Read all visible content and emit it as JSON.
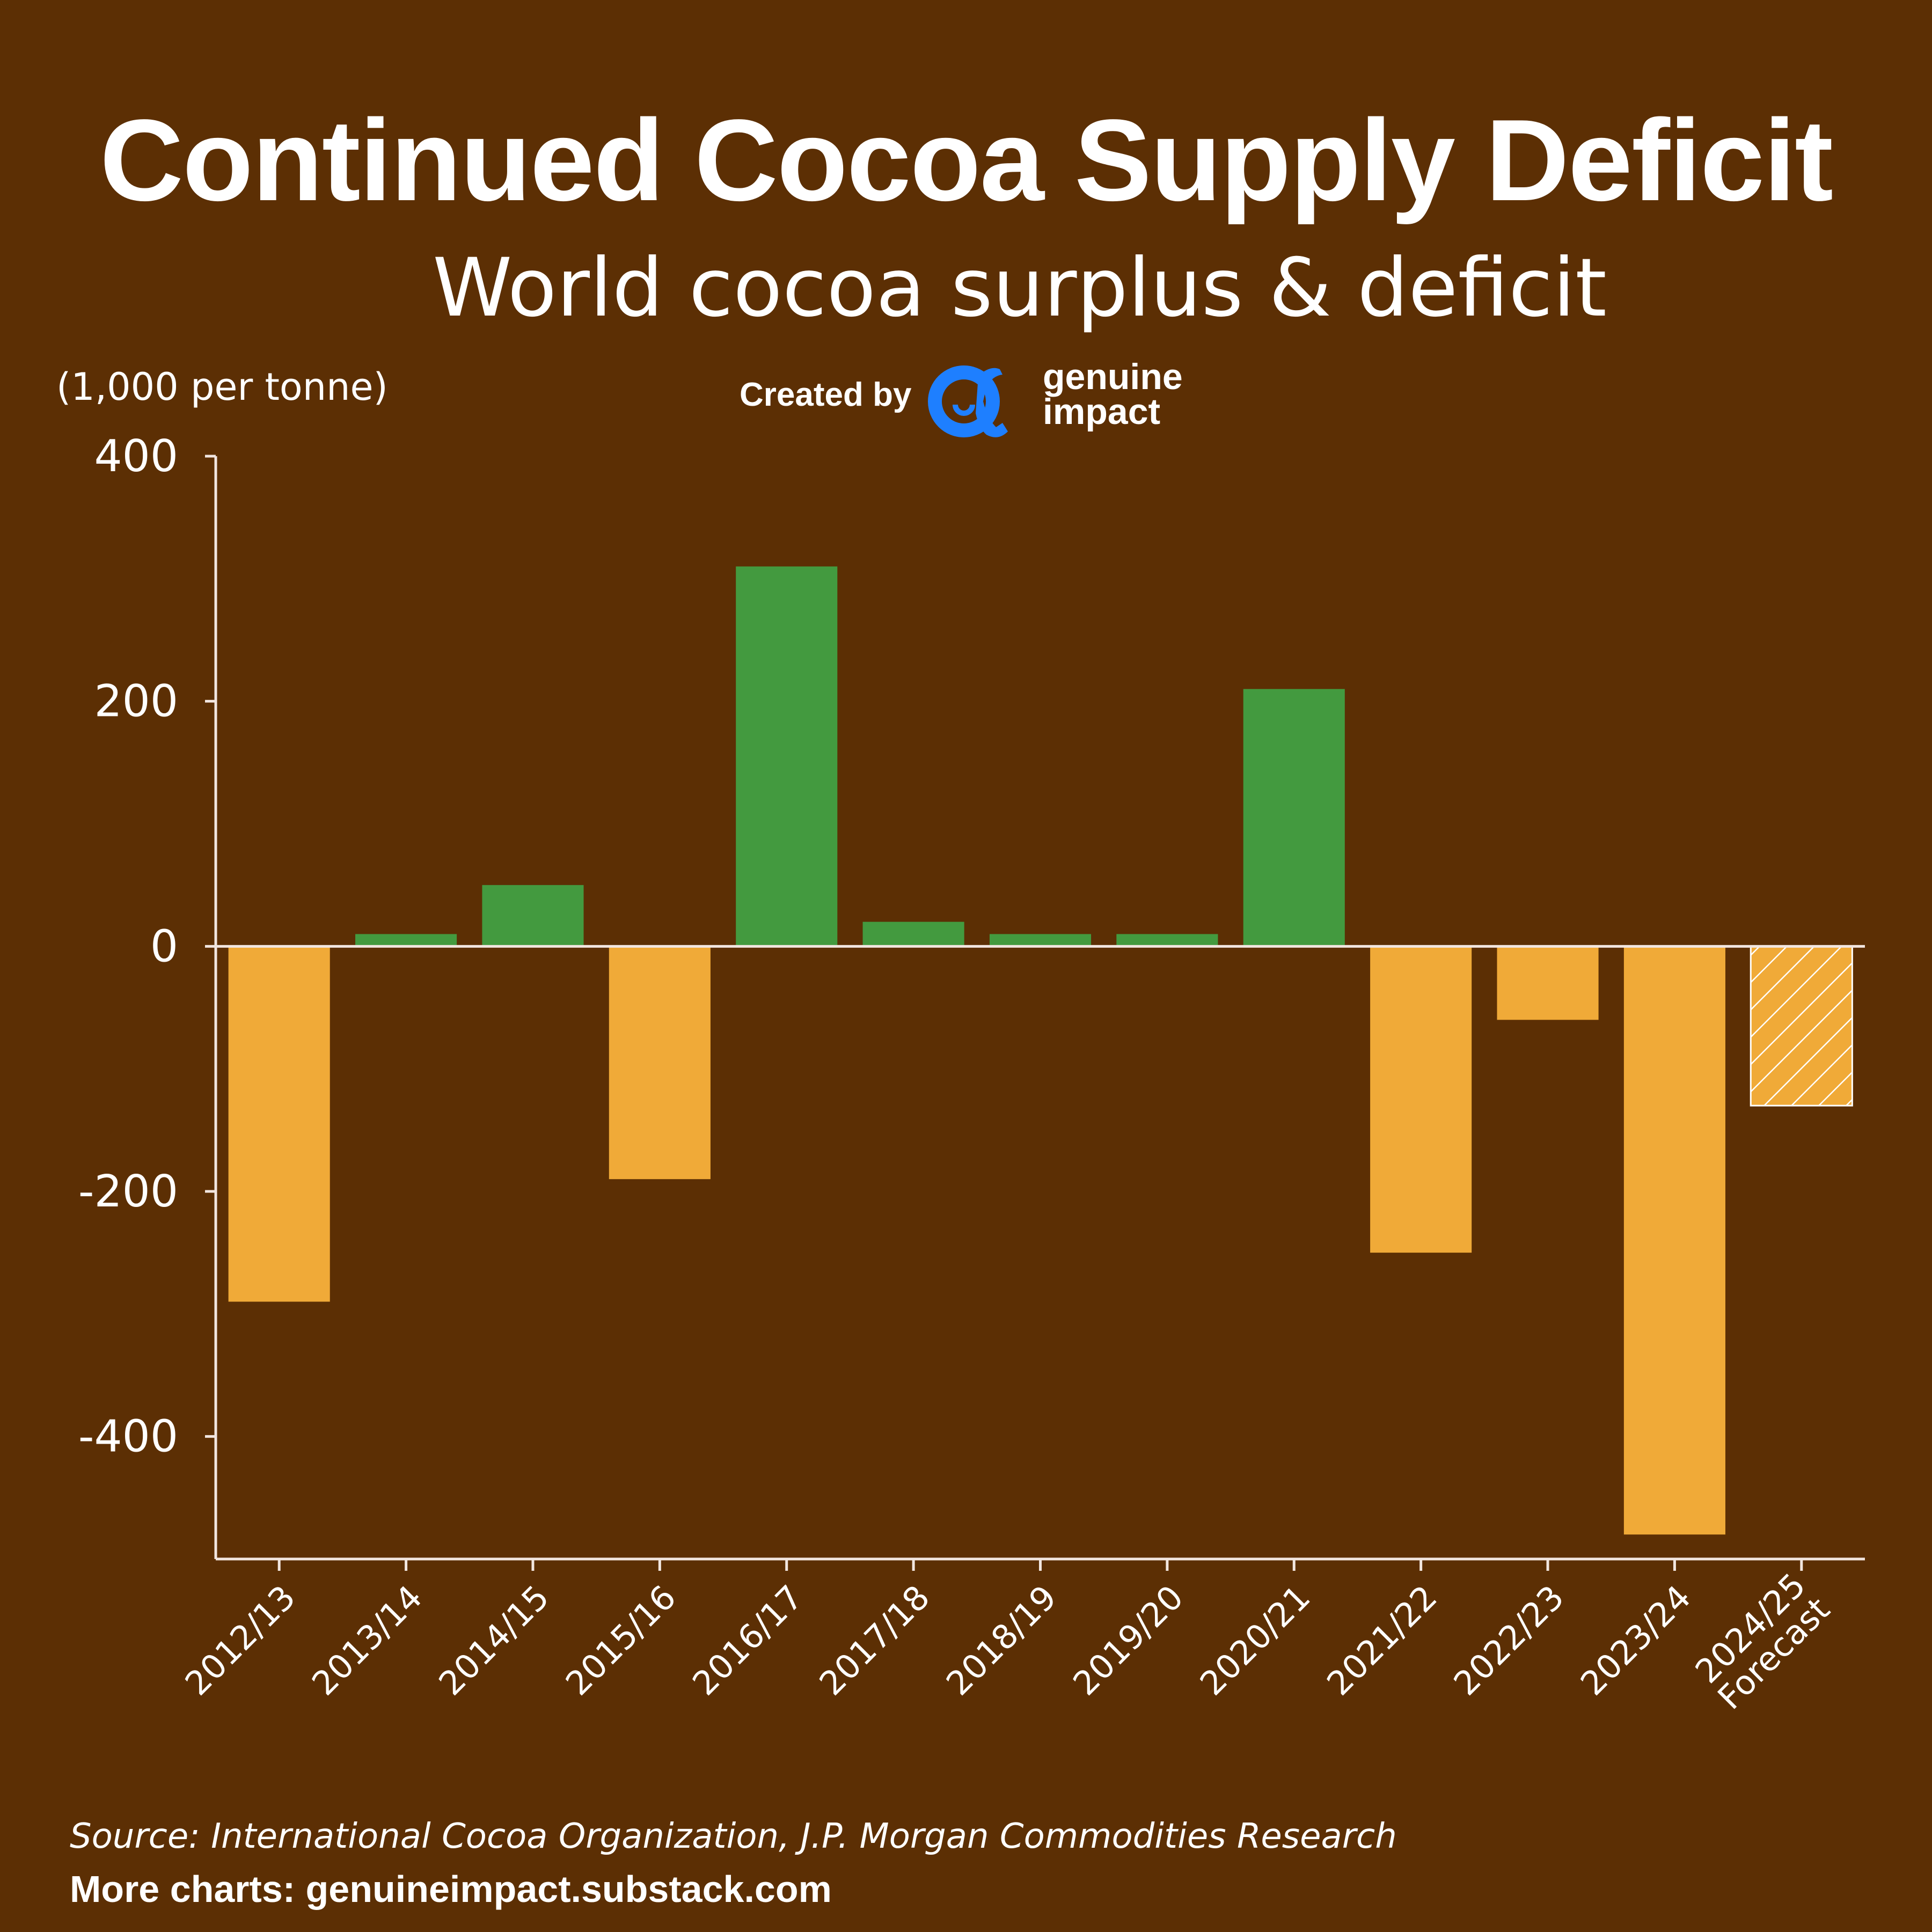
{
  "header": {
    "title": "Continued Cocoa Supply Deficit",
    "subtitle": "World cocoa surplus & deficit",
    "unit_label": "(1,000 per tonne)"
  },
  "credit": {
    "prefix": "Created by",
    "brand_line1": "genuine",
    "brand_line2": "impact",
    "brand_icon": "alpha-eye-logo-icon"
  },
  "footer": {
    "source": "Source: International Cocoa Organization, J.P. Morgan Commodities Research",
    "more": "More charts: genuineimpact.substack.com"
  },
  "colors": {
    "background": "#5c2f04",
    "surplus": "#439a3f",
    "deficit": "#f0aa38",
    "axis": "#f2e6e0",
    "brand_blue": "#1e7fff"
  },
  "chart_data": {
    "type": "bar",
    "categories": [
      "2012/13",
      "2013/14",
      "2014/15",
      "2015/16",
      "2016/17",
      "2017/18",
      "2018/19",
      "2019/20",
      "2020/21",
      "2021/22",
      "2022/23",
      "2023/24",
      "2024/25\nForecast"
    ],
    "values": [
      -290,
      10,
      50,
      -190,
      310,
      20,
      10,
      10,
      210,
      -250,
      -60,
      -480,
      -130
    ],
    "forecast_flags": [
      false,
      false,
      false,
      false,
      false,
      false,
      false,
      false,
      false,
      false,
      false,
      false,
      true
    ],
    "ylim": [
      -500,
      400
    ],
    "yticks": [
      400,
      200,
      0,
      -200,
      -400
    ],
    "ylabel": "(1,000 per tonne)",
    "xlabel": "",
    "grid": false,
    "legend": "none"
  }
}
